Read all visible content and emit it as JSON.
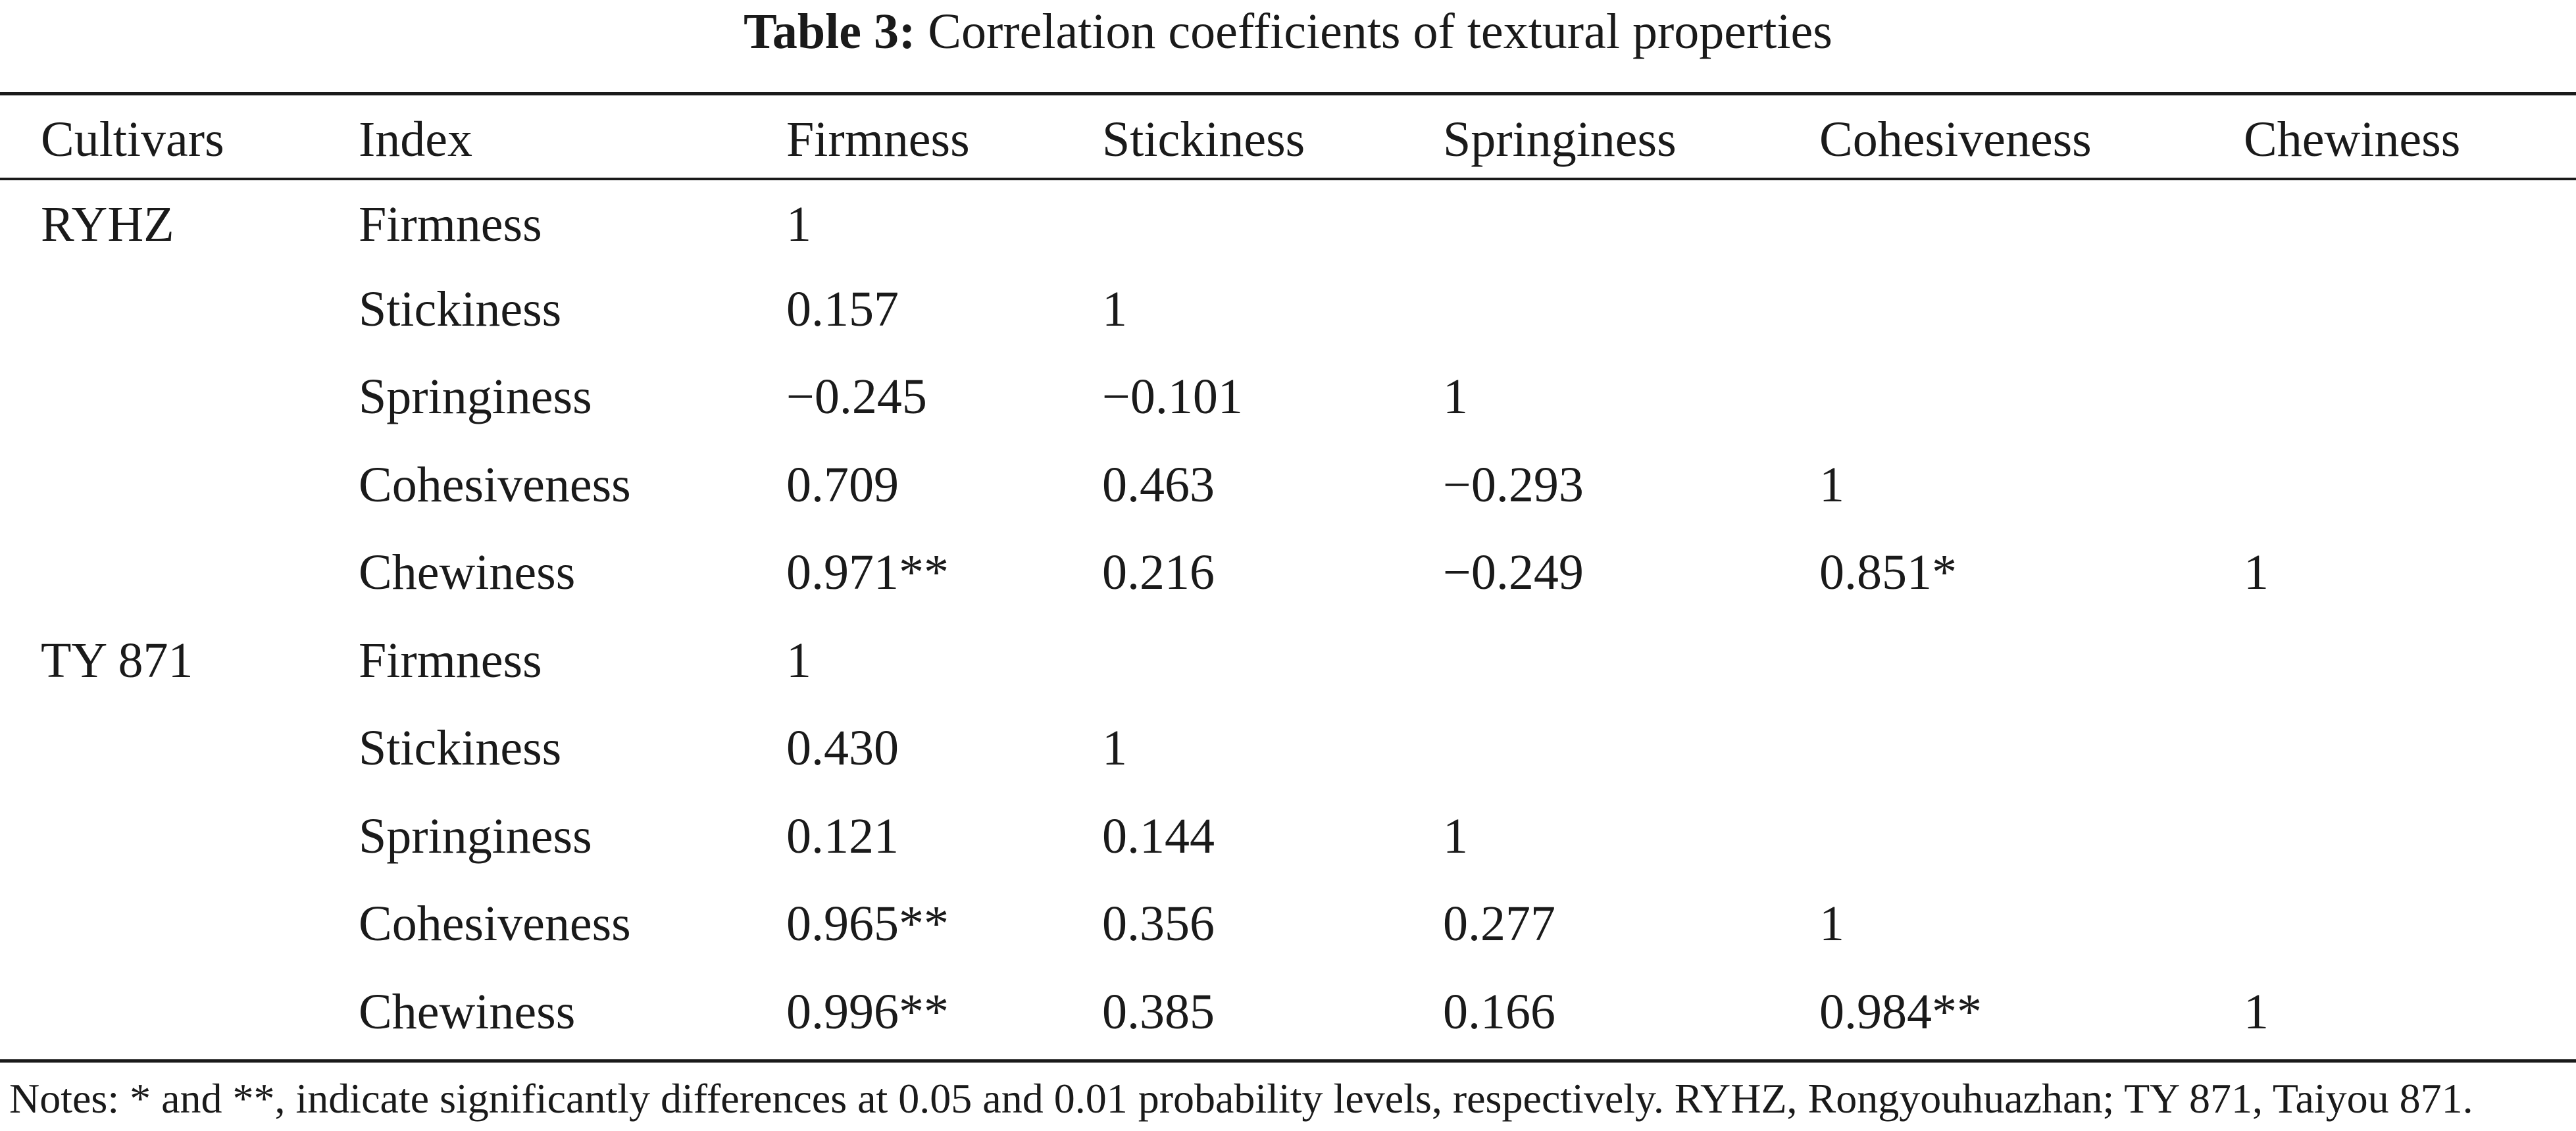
{
  "title": {
    "label": "Table 3:",
    "text": "Correlation coefficients of textural properties"
  },
  "table": {
    "headers": [
      "Cultivars",
      "Index",
      "Firmness",
      "Stickiness",
      "Springiness",
      "Cohesiveness",
      "Chewiness"
    ],
    "groups": [
      {
        "cultivar": "RYHZ",
        "rows": [
          {
            "index": "Firmness",
            "values": [
              "1",
              "",
              "",
              "",
              ""
            ]
          },
          {
            "index": "Stickiness",
            "values": [
              "0.157",
              "1",
              "",
              "",
              ""
            ]
          },
          {
            "index": "Springiness",
            "values": [
              "−0.245",
              "−0.101",
              "1",
              "",
              ""
            ]
          },
          {
            "index": "Cohesiveness",
            "values": [
              "0.709",
              "0.463",
              "−0.293",
              "1",
              ""
            ]
          },
          {
            "index": "Chewiness",
            "values": [
              "0.971**",
              "0.216",
              "−0.249",
              "0.851*",
              "1"
            ]
          }
        ]
      },
      {
        "cultivar": "TY 871",
        "rows": [
          {
            "index": "Firmness",
            "values": [
              "1",
              "",
              "",
              "",
              ""
            ]
          },
          {
            "index": "Stickiness",
            "values": [
              "0.430",
              "1",
              "",
              "",
              ""
            ]
          },
          {
            "index": "Springiness",
            "values": [
              "0.121",
              "0.144",
              "1",
              "",
              ""
            ]
          },
          {
            "index": "Cohesiveness",
            "values": [
              "0.965**",
              "0.356",
              "0.277",
              "1",
              ""
            ]
          },
          {
            "index": "Chewiness",
            "values": [
              "0.996**",
              "0.385",
              "0.166",
              "0.984**",
              "1"
            ]
          }
        ]
      }
    ]
  },
  "notes": "Notes: * and **, indicate significantly differences at 0.05 and 0.01 probability levels, respectively. RYHZ, Rongyouhuazhan; TY 871, Taiyou 871."
}
